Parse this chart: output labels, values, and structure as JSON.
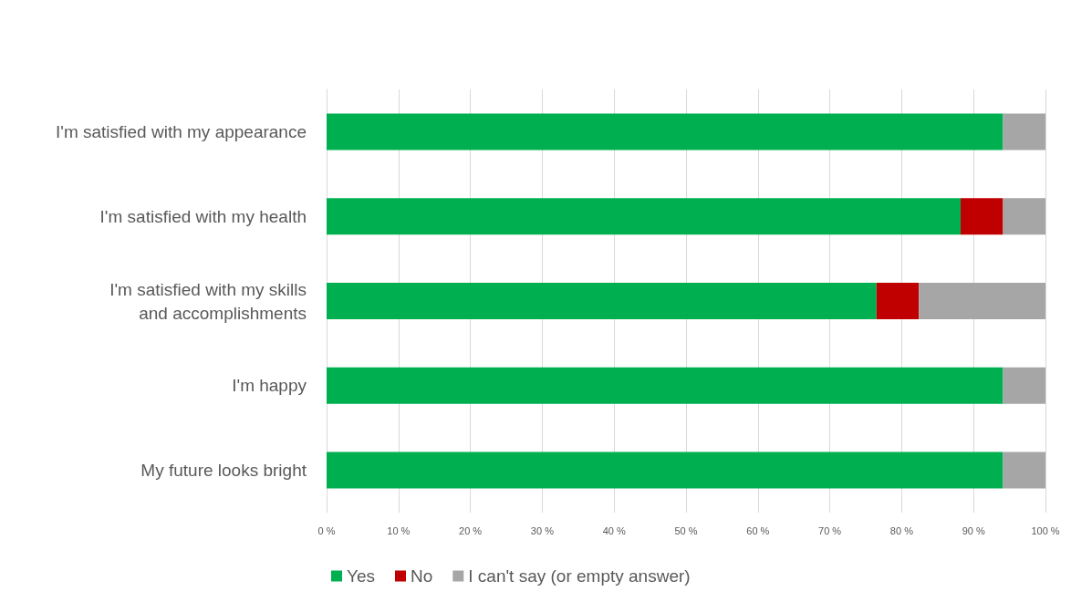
{
  "chart_data": {
    "type": "bar",
    "orientation": "horizontal",
    "stacked": true,
    "categories": [
      "I'm satisfied with my appearance",
      "I'm satisfied with my health",
      "I'm satisfied with my skills\nand accomplishments",
      "I'm happy",
      "My future looks bright"
    ],
    "series": [
      {
        "name": "Yes",
        "color": "#00b050",
        "values": [
          94.1,
          88.2,
          76.5,
          94.1,
          94.1
        ]
      },
      {
        "name": "No",
        "color": "#c00000",
        "values": [
          0,
          5.9,
          5.9,
          0,
          0
        ]
      },
      {
        "name": "I can't say (or empty answer)",
        "color": "#a6a6a6",
        "values": [
          5.9,
          5.9,
          17.6,
          5.9,
          5.9
        ]
      }
    ],
    "xlim": [
      0,
      100
    ],
    "xticks": [
      {
        "value": 0,
        "label": "0 %"
      },
      {
        "value": 10,
        "label": "10 %"
      },
      {
        "value": 20,
        "label": "20 %"
      },
      {
        "value": 30,
        "label": "30 %"
      },
      {
        "value": 40,
        "label": "40 %"
      },
      {
        "value": 50,
        "label": "50 %"
      },
      {
        "value": 60,
        "label": "60 %"
      },
      {
        "value": 70,
        "label": "70 %"
      },
      {
        "value": 80,
        "label": "80 %"
      },
      {
        "value": 90,
        "label": "90 %"
      },
      {
        "value": 100,
        "label": "100 %"
      }
    ],
    "grid": "x",
    "legend": "bottom"
  }
}
